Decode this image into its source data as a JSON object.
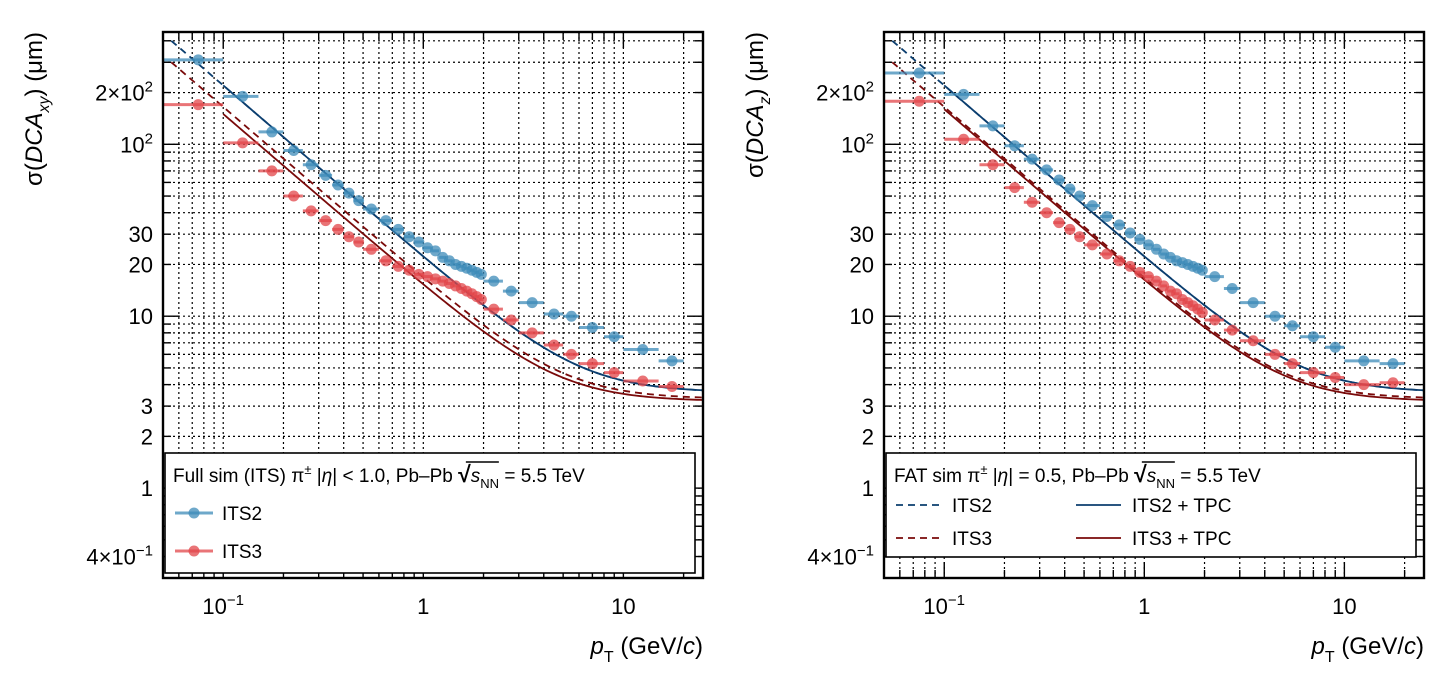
{
  "colors": {
    "its2": "#3d8bb8",
    "its3": "#e2454a",
    "its2_curve": "#0b3e6f",
    "its3_curve": "#7a0a0a"
  },
  "chart_data": [
    {
      "type": "scatter",
      "title": "",
      "xlabel_main": "p",
      "xlabel_sub": "T",
      "xlabel_unit": "(GeV/",
      "xlabel_c": "c",
      "xlabel_close": ")",
      "ylabel_prefix": "σ(",
      "ylabel_main": "DCA",
      "ylabel_sub": "xy",
      "ylabel_unit": ") (μm)",
      "xscale": "log",
      "yscale": "log",
      "xlim": [
        0.05,
        25
      ],
      "ylim": [
        0.3,
        450
      ],
      "xticks": [
        {
          "v": 0.1,
          "base": "10",
          "exp": "−1"
        },
        {
          "v": 1,
          "label": "1"
        },
        {
          "v": 10,
          "label": "10"
        }
      ],
      "yticks": [
        {
          "v": 0.4,
          "mant": "4×10",
          "exp": "−1"
        },
        {
          "v": 1,
          "label": "1"
        },
        {
          "v": 2,
          "label": "2"
        },
        {
          "v": 3,
          "label": "3"
        },
        {
          "v": 10,
          "label": "10"
        },
        {
          "v": 20,
          "label": "20"
        },
        {
          "v": 30,
          "label": "30"
        },
        {
          "v": 100,
          "base": "10",
          "exp": "2"
        },
        {
          "v": 200,
          "mant": "2×10",
          "exp": "2"
        }
      ],
      "grid": true,
      "legend": {
        "position": "bottom-left",
        "header_pre": "Full sim (ITS) π",
        "header_sup": "±",
        "header_mid": " |",
        "header_eta": "η",
        "header_post": "| < 1.0, Pb–Pb ",
        "header_s": "s",
        "header_nn": "NN",
        "header_energy": " = 5.5 TeV",
        "entries": [
          {
            "label": "ITS2",
            "series": "ITS2",
            "style": "marker"
          },
          {
            "label": "ITS3",
            "series": "ITS3",
            "style": "marker"
          }
        ]
      },
      "series": [
        {
          "name": "ITS2",
          "style": "marker",
          "color": "its2",
          "x": [
            0.075,
            0.125,
            0.175,
            0.225,
            0.275,
            0.325,
            0.375,
            0.425,
            0.475,
            0.55,
            0.65,
            0.75,
            0.85,
            0.95,
            1.05,
            1.15,
            1.25,
            1.35,
            1.45,
            1.55,
            1.65,
            1.75,
            1.85,
            1.95,
            2.25,
            2.75,
            3.5,
            4.5,
            5.5,
            7,
            9,
            12.5,
            17.5
          ],
          "y": [
            310,
            190,
            118,
            92,
            76,
            66,
            58,
            52,
            47,
            42,
            36,
            32,
            29,
            27,
            25,
            24,
            22,
            21,
            20,
            19.5,
            19,
            18.5,
            18,
            17.5,
            16,
            14,
            12,
            10.3,
            10,
            8.6,
            7.6,
            6.4,
            5.5
          ],
          "xerr": [
            0.025,
            0.025,
            0.025,
            0.025,
            0.025,
            0.025,
            0.025,
            0.025,
            0.025,
            0.05,
            0.05,
            0.05,
            0.05,
            0.05,
            0.05,
            0.05,
            0.05,
            0.05,
            0.05,
            0.05,
            0.05,
            0.05,
            0.05,
            0.05,
            0.25,
            0.25,
            0.5,
            0.5,
            0.5,
            1,
            1,
            2.5,
            2.5
          ]
        },
        {
          "name": "ITS3",
          "style": "marker",
          "color": "its3",
          "x": [
            0.075,
            0.125,
            0.175,
            0.225,
            0.275,
            0.325,
            0.375,
            0.425,
            0.475,
            0.55,
            0.65,
            0.75,
            0.85,
            0.95,
            1.05,
            1.15,
            1.25,
            1.35,
            1.45,
            1.55,
            1.65,
            1.75,
            1.85,
            1.95,
            2.25,
            2.75,
            3.5,
            4.5,
            5.5,
            7,
            9,
            12.5,
            17.5
          ],
          "y": [
            170,
            102,
            70,
            50,
            41,
            36,
            32,
            29,
            27,
            24.5,
            21,
            19.5,
            18.5,
            17.5,
            17,
            16.5,
            16,
            15.5,
            15,
            14.5,
            14,
            13.5,
            13,
            12.5,
            11,
            9.5,
            8,
            6.8,
            6,
            5.3,
            4.7,
            4.2,
            3.9
          ],
          "xerr": [
            0.025,
            0.025,
            0.025,
            0.025,
            0.025,
            0.025,
            0.025,
            0.025,
            0.025,
            0.05,
            0.05,
            0.05,
            0.05,
            0.05,
            0.05,
            0.05,
            0.05,
            0.05,
            0.05,
            0.05,
            0.05,
            0.05,
            0.05,
            0.05,
            0.25,
            0.25,
            0.5,
            0.5,
            0.5,
            1,
            1,
            2.5,
            2.5
          ]
        },
        {
          "name": "ITS2 (dashed)",
          "style": "dashed",
          "color": "its2_curve",
          "a": 3.6,
          "b": 22,
          "xmin": 0.055
        },
        {
          "name": "ITS3 (dashed)",
          "style": "dashed",
          "color": "its3_curve",
          "a": 3.3,
          "b": 16.5,
          "xmin": 0.055
        },
        {
          "name": "ITS2 (solid)",
          "style": "solid",
          "color": "its2_curve",
          "a": 3.6,
          "b": 22,
          "xmin": 0.1
        },
        {
          "name": "ITS3 (solid)",
          "style": "solid",
          "color": "its3_curve",
          "a": 3.2,
          "b": 15,
          "xmin": 0.1
        }
      ]
    },
    {
      "type": "scatter",
      "title": "",
      "xlabel_main": "p",
      "xlabel_sub": "T",
      "xlabel_unit": "(GeV/",
      "xlabel_c": "c",
      "xlabel_close": ")",
      "ylabel_prefix": "σ(",
      "ylabel_main": "DCA",
      "ylabel_sub": "z",
      "ylabel_unit": ") (μm)",
      "xscale": "log",
      "yscale": "log",
      "xlim": [
        0.05,
        25
      ],
      "ylim": [
        0.3,
        450
      ],
      "xticks": [
        {
          "v": 0.1,
          "base": "10",
          "exp": "−1"
        },
        {
          "v": 1,
          "label": "1"
        },
        {
          "v": 10,
          "label": "10"
        }
      ],
      "yticks": [
        {
          "v": 0.4,
          "mant": "4×10",
          "exp": "−1"
        },
        {
          "v": 1,
          "label": "1"
        },
        {
          "v": 2,
          "label": "2"
        },
        {
          "v": 3,
          "label": "3"
        },
        {
          "v": 10,
          "label": "10"
        },
        {
          "v": 20,
          "label": "20"
        },
        {
          "v": 30,
          "label": "30"
        },
        {
          "v": 100,
          "base": "10",
          "exp": "2"
        },
        {
          "v": 200,
          "mant": "2×10",
          "exp": "2"
        }
      ],
      "grid": true,
      "legend": {
        "position": "bottom-left",
        "header_pre": "FAT sim π",
        "header_sup": "±",
        "header_mid": " |",
        "header_eta": "η",
        "header_post": "| = 0.5, Pb–Pb ",
        "header_s": "s",
        "header_nn": "NN",
        "header_energy": " = 5.5 TeV",
        "entries": [
          {
            "label": "ITS2",
            "series": "ITS2 (dashed)",
            "style": "dashed"
          },
          {
            "label": "ITS2 + TPC",
            "series": "ITS2 + TPC",
            "style": "solid"
          },
          {
            "label": "ITS3",
            "series": "ITS3 (dashed)",
            "style": "dashed"
          },
          {
            "label": "ITS3 + TPC",
            "series": "ITS3 + TPC",
            "style": "solid"
          }
        ]
      },
      "series": [
        {
          "name": "ITS2",
          "style": "marker",
          "color": "its2",
          "x": [
            0.075,
            0.125,
            0.175,
            0.225,
            0.275,
            0.325,
            0.375,
            0.425,
            0.475,
            0.55,
            0.65,
            0.75,
            0.85,
            0.95,
            1.05,
            1.15,
            1.25,
            1.35,
            1.45,
            1.55,
            1.65,
            1.75,
            1.85,
            1.95,
            2.25,
            2.75,
            3.5,
            4.5,
            5.5,
            7,
            9,
            12.5,
            17.5
          ],
          "y": [
            260,
            195,
            128,
            98,
            82,
            71,
            62,
            55,
            50,
            44,
            38,
            34,
            30.5,
            28,
            26,
            24.5,
            23,
            22,
            21,
            20.5,
            20,
            19.5,
            19,
            18.5,
            17,
            14.5,
            12,
            10,
            8.8,
            7.6,
            6.6,
            5.5,
            5.3
          ],
          "xerr": [
            0.025,
            0.025,
            0.025,
            0.025,
            0.025,
            0.025,
            0.025,
            0.025,
            0.025,
            0.05,
            0.05,
            0.05,
            0.05,
            0.05,
            0.05,
            0.05,
            0.05,
            0.05,
            0.05,
            0.05,
            0.05,
            0.05,
            0.05,
            0.05,
            0.25,
            0.25,
            0.5,
            0.5,
            0.5,
            1,
            1,
            2.5,
            2.5
          ]
        },
        {
          "name": "ITS3",
          "style": "marker",
          "color": "its3",
          "x": [
            0.075,
            0.125,
            0.175,
            0.225,
            0.275,
            0.325,
            0.375,
            0.425,
            0.475,
            0.55,
            0.65,
            0.75,
            0.85,
            0.95,
            1.05,
            1.15,
            1.25,
            1.35,
            1.45,
            1.55,
            1.65,
            1.75,
            1.85,
            1.95,
            2.25,
            2.75,
            3.5,
            4.5,
            5.5,
            7,
            9,
            12.5,
            17.5
          ],
          "y": [
            178,
            107,
            76,
            56,
            46,
            40,
            35,
            32,
            29,
            26,
            23,
            21,
            19.5,
            18,
            17,
            16,
            15,
            14,
            13.5,
            12.5,
            12,
            11.5,
            11,
            10.5,
            9.5,
            8.3,
            7.2,
            6,
            5.3,
            4.7,
            4.4,
            4,
            4.1
          ],
          "xerr": [
            0.025,
            0.025,
            0.025,
            0.025,
            0.025,
            0.025,
            0.025,
            0.025,
            0.025,
            0.05,
            0.05,
            0.05,
            0.05,
            0.05,
            0.05,
            0.05,
            0.05,
            0.05,
            0.05,
            0.05,
            0.05,
            0.05,
            0.05,
            0.05,
            0.25,
            0.25,
            0.5,
            0.5,
            0.5,
            1,
            1,
            2.5,
            2.5
          ]
        },
        {
          "name": "ITS2 (dashed)",
          "style": "dashed",
          "color": "its2_curve",
          "a": 3.6,
          "b": 22,
          "xmin": 0.055
        },
        {
          "name": "ITS3 (dashed)",
          "style": "dashed",
          "color": "its3_curve",
          "a": 3.3,
          "b": 16.5,
          "xmin": 0.055
        },
        {
          "name": "ITS2 + TPC",
          "style": "solid",
          "color": "its2_curve",
          "a": 3.6,
          "b": 22,
          "xmin": 0.1
        },
        {
          "name": "ITS3 + TPC",
          "style": "solid",
          "color": "its3_curve",
          "a": 3.2,
          "b": 16,
          "xmin": 0.1
        }
      ]
    }
  ]
}
